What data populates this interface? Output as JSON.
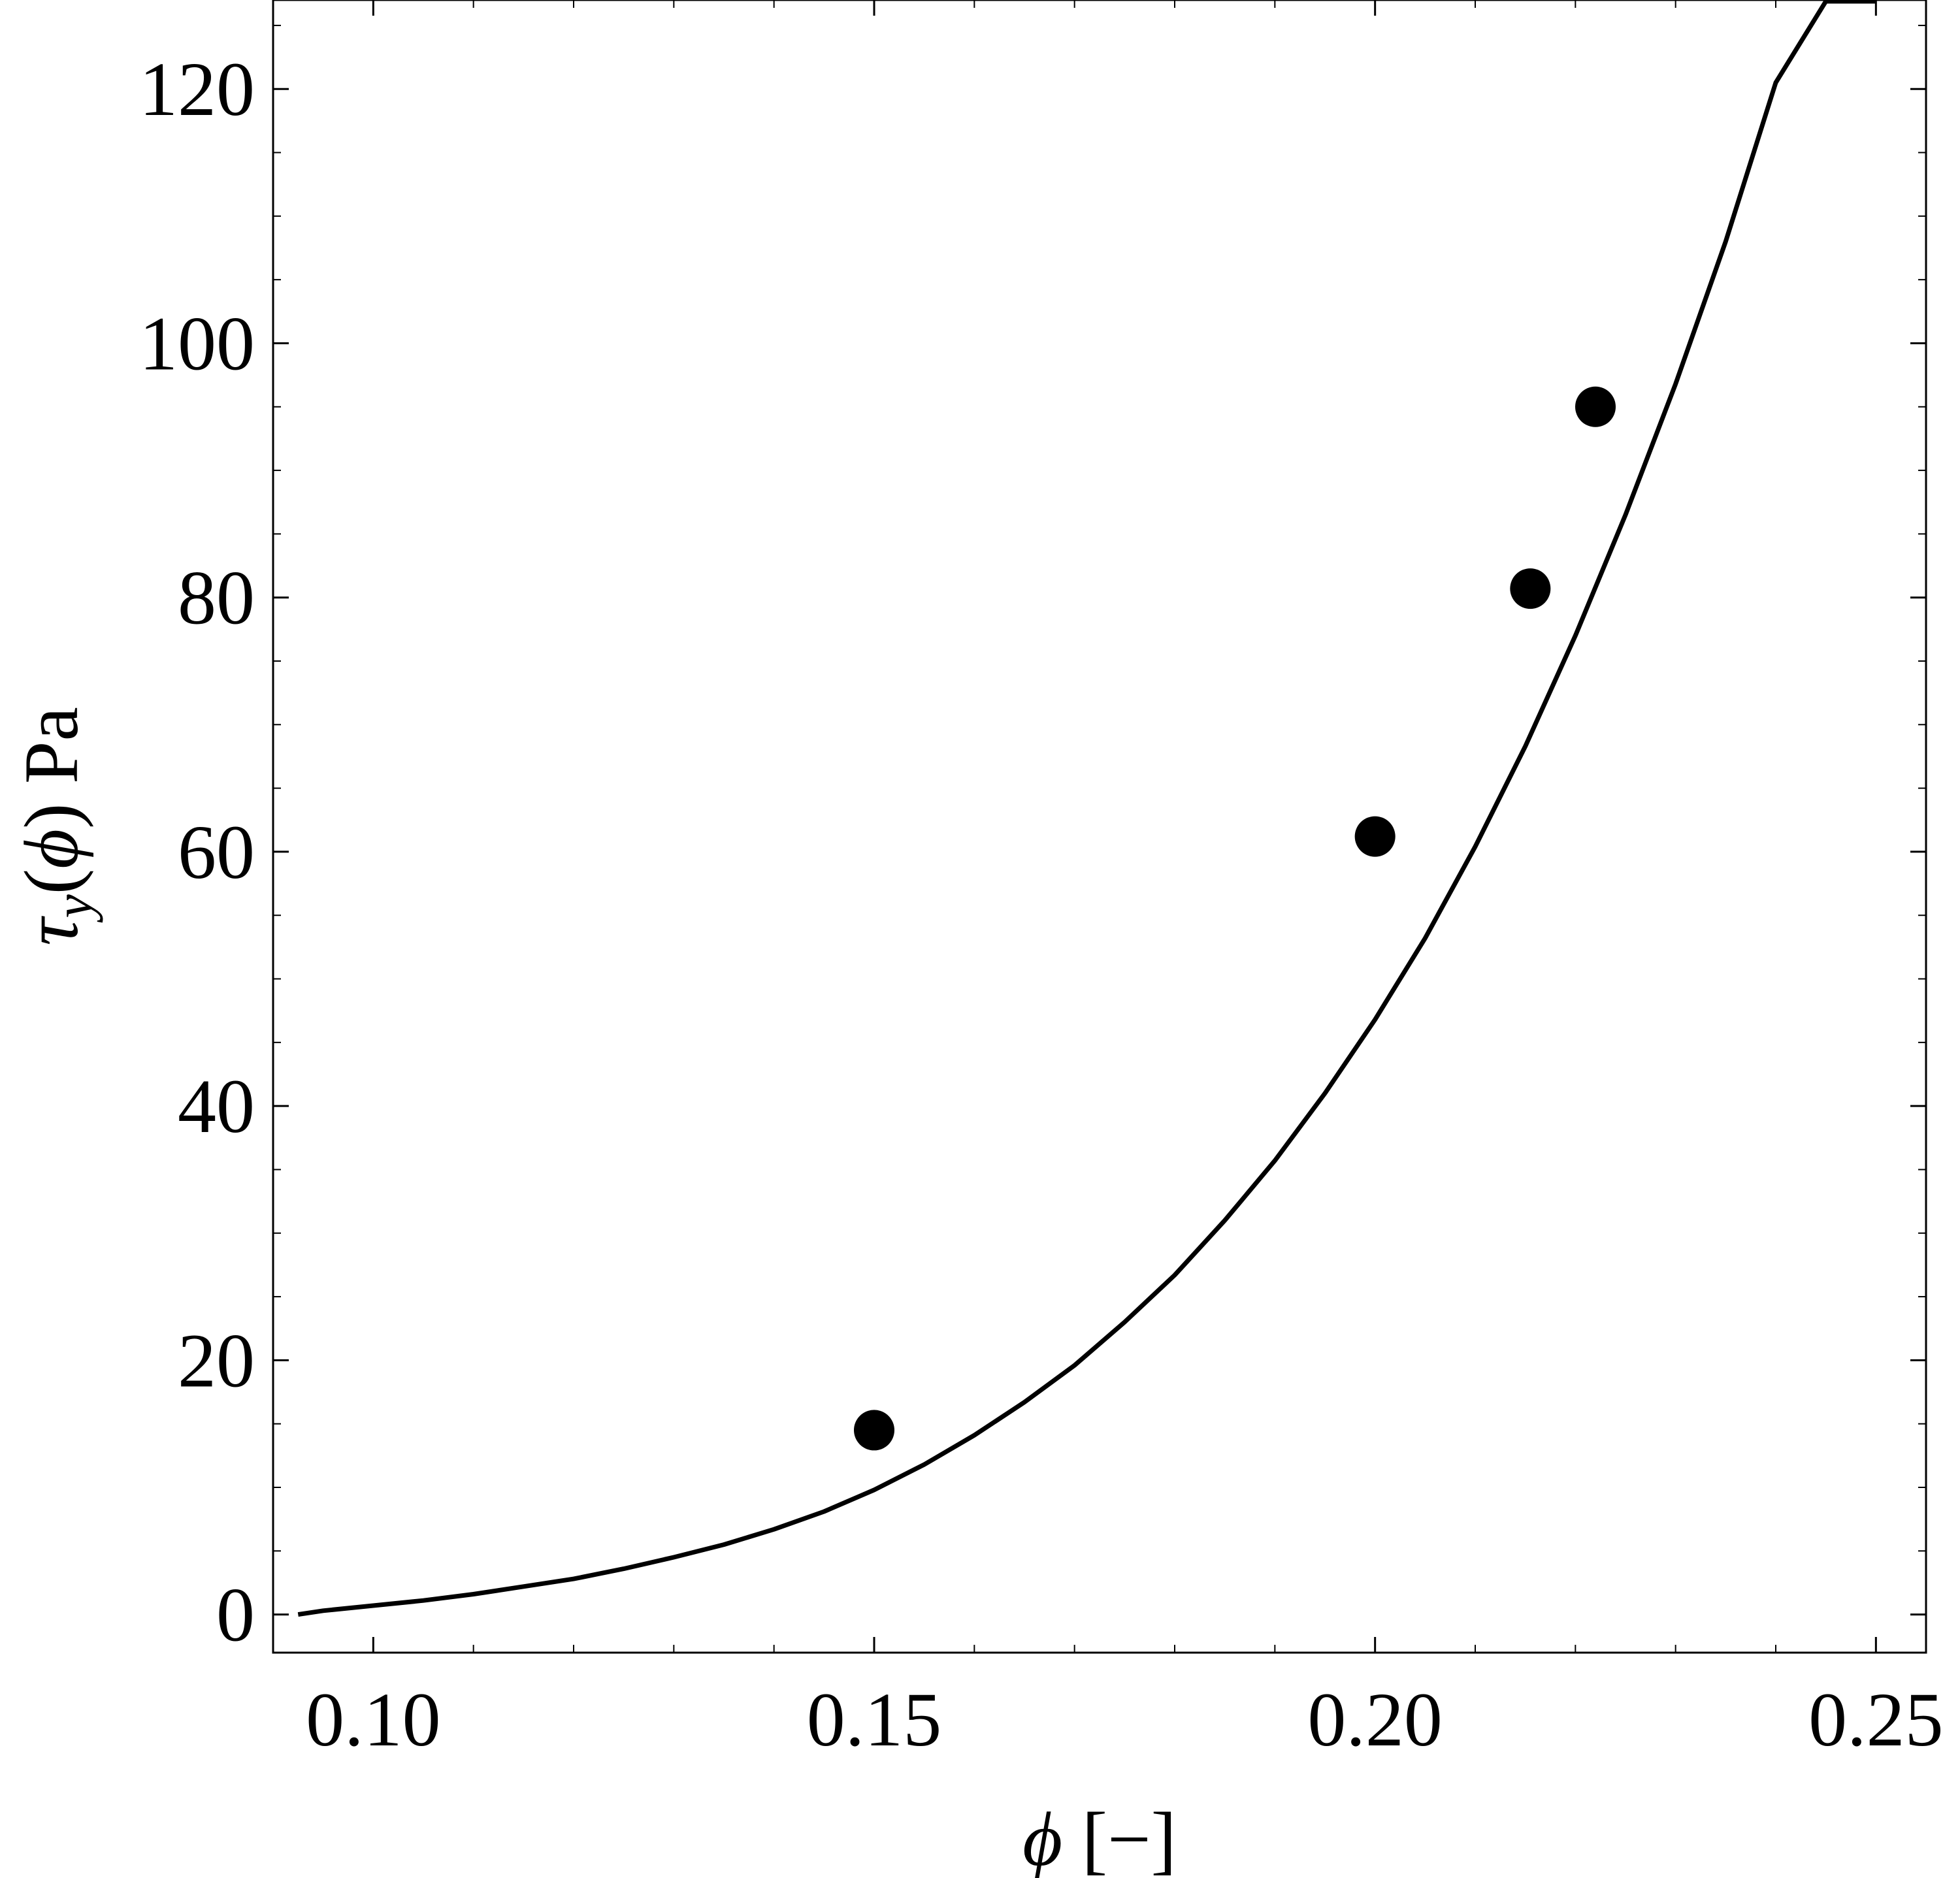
{
  "chart_data": {
    "type": "scatter",
    "xlabel": "ϕ [−]",
    "ylabel": "τy(ϕ) Pa",
    "xlabel_parts": {
      "symbol": "ϕ",
      "unit": " [−]"
    },
    "ylabel_parts": {
      "symbol": "τ",
      "sub": "y",
      "arg_open": "(",
      "arg": "ϕ",
      "arg_close": ")",
      "unit": " Pa"
    },
    "xlim": [
      0.09,
      0.255
    ],
    "ylim": [
      -3,
      127
    ],
    "x_ticks": [
      {
        "value": 0.1,
        "label": "0.10"
      },
      {
        "value": 0.15,
        "label": "0.15"
      },
      {
        "value": 0.2,
        "label": "0.20"
      },
      {
        "value": 0.25,
        "label": "0.25"
      }
    ],
    "y_ticks": [
      {
        "value": 0,
        "label": "0"
      },
      {
        "value": 20,
        "label": "20"
      },
      {
        "value": 40,
        "label": "40"
      },
      {
        "value": 60,
        "label": "60"
      },
      {
        "value": 80,
        "label": "80"
      },
      {
        "value": 100,
        "label": "100"
      },
      {
        "value": 120,
        "label": "120"
      }
    ],
    "grid": false,
    "series": [
      {
        "kind": "line",
        "x": [
          0.0925,
          0.095,
          0.1,
          0.105,
          0.11,
          0.115,
          0.12,
          0.125,
          0.13,
          0.135,
          0.14,
          0.145,
          0.15,
          0.155,
          0.16,
          0.165,
          0.17,
          0.175,
          0.18,
          0.185,
          0.19,
          0.195,
          0.2,
          0.205,
          0.21,
          0.215,
          0.22,
          0.225,
          0.23,
          0.235,
          0.24,
          0.245,
          0.25
        ],
        "y": [
          0.0,
          0.3,
          0.7,
          1.1,
          1.6,
          2.2,
          2.8,
          3.6,
          4.5,
          5.5,
          6.7,
          8.1,
          9.8,
          11.8,
          14.1,
          16.7,
          19.6,
          23.0,
          26.7,
          31.0,
          35.7,
          41.0,
          46.8,
          53.2,
          60.4,
          68.3,
          77.0,
          86.5,
          96.8,
          108.0,
          120.5,
          131.0,
          136.0
        ]
      },
      {
        "kind": "points",
        "x": [
          0.15,
          0.2,
          0.2155,
          0.222
        ],
        "y": [
          14.5,
          61.2,
          80.7,
          95.0
        ]
      }
    ]
  }
}
